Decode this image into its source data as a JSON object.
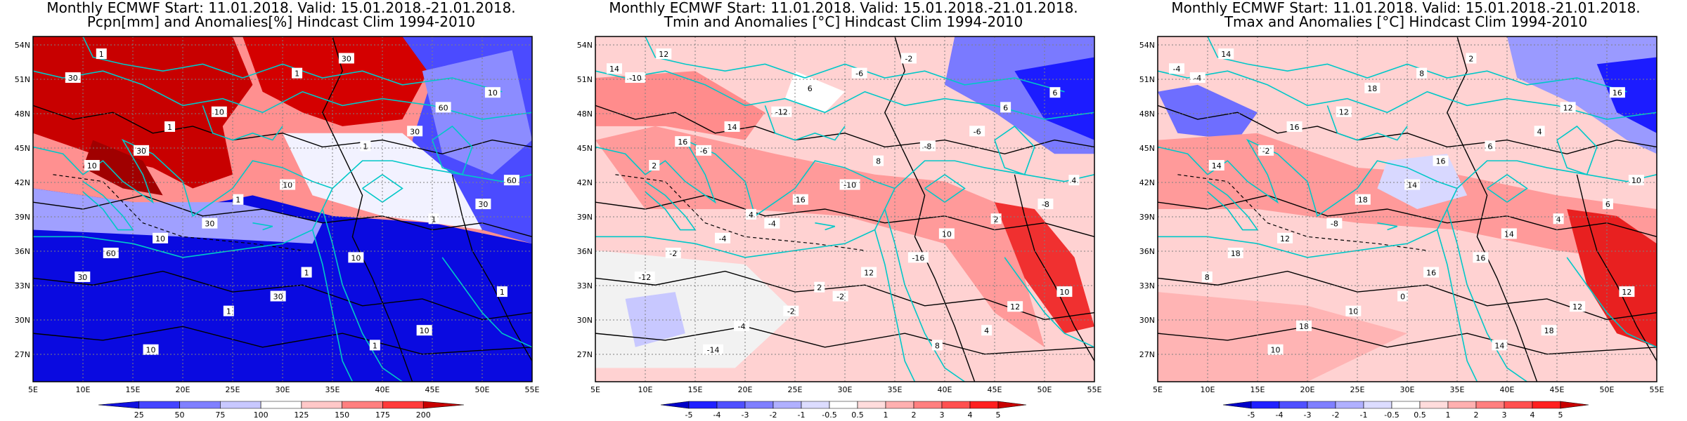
{
  "panels": [
    {
      "title_line1": "Monthly ECMWF Start: 11.01.2018. Valid: 15.01.2018.-21.01.2018.",
      "title_line2": "Pcpn[mm] and Anomalies[%] Hindcast Clim 1994-2010",
      "scale_values": [
        "25",
        "50",
        "75",
        "100",
        "125",
        "150",
        "175",
        "200"
      ],
      "scale_colors": [
        "#1010e0",
        "#4545ff",
        "#8080ff",
        "#c8c8ff",
        "#ffffff",
        "#ffc8c8",
        "#ff8080",
        "#ff3a3a",
        "#c80000"
      ],
      "contour_labels": [
        "30",
        "30",
        "30",
        "30",
        "30",
        "30",
        "30",
        "30",
        "10",
        "10",
        "10",
        "10",
        "10",
        "10",
        "10",
        "10",
        "1",
        "1",
        "1",
        "1",
        "1",
        "1",
        "1",
        "1",
        "1",
        "1",
        "60",
        "60",
        "60"
      ],
      "theme": "precip"
    },
    {
      "title_line1": "Monthly ECMWF Start: 11.01.2018. Valid: 15.01.2018.-21.01.2018.",
      "title_line2": "Tmin and Anomalies [°C] Hindcast Clim 1994-2010",
      "scale_values": [
        "-5",
        "-4",
        "-3",
        "-2",
        "-1",
        "-0.5",
        "0.5",
        "1",
        "2",
        "3",
        "4",
        "5"
      ],
      "scale_colors": [
        "#0000c8",
        "#2020ff",
        "#5050ff",
        "#8080ff",
        "#b0b0ff",
        "#dcdcff",
        "#ffffff",
        "#ffdcdc",
        "#ffb0b0",
        "#ff8080",
        "#ff5050",
        "#ff2020",
        "#c80000"
      ],
      "contour_labels": [
        "-10",
        "-6",
        "-4",
        "-2",
        "-2",
        "-6",
        "-8",
        "-12",
        "-14",
        "-12",
        "-10",
        "-16",
        "4",
        "6",
        "2",
        "-4",
        "-2",
        "-6",
        "-8",
        "2",
        "10",
        "12",
        "14",
        "16",
        "12",
        "8",
        "6",
        "4",
        "-2",
        "-4",
        "6",
        "8",
        "10",
        "12",
        "14",
        "16",
        "4",
        "2"
      ],
      "theme": "tmin"
    },
    {
      "title_line1": "Monthly ECMWF Start: 11.01.2018. Valid: 15.01.2018.-21.01.2018.",
      "title_line2": "Tmax and Anomalies [°C] Hindcast Clim 1994-2010",
      "scale_values": [
        "-5",
        "-4",
        "-3",
        "-2",
        "-1",
        "-0.5",
        "0.5",
        "1",
        "2",
        "3",
        "4",
        "5"
      ],
      "scale_colors": [
        "#0000c8",
        "#2020ff",
        "#5050ff",
        "#8080ff",
        "#b0b0ff",
        "#dcdcff",
        "#ffffff",
        "#ffdcdc",
        "#ffb0b0",
        "#ff8080",
        "#ff5050",
        "#ff2020",
        "#c80000"
      ],
      "contour_labels": [
        "-4",
        "-2",
        "-8",
        "0",
        "2",
        "4",
        "6",
        "8",
        "10",
        "12",
        "14",
        "16",
        "18",
        "16",
        "14",
        "12",
        "10",
        "8",
        "6",
        "4",
        "12",
        "14",
        "16",
        "18",
        "16",
        "14",
        "12",
        "10",
        "18",
        "18",
        "18",
        "16",
        "14",
        "12",
        "-4"
      ],
      "theme": "tmax"
    }
  ],
  "axes": {
    "lat_labels": [
      "54N",
      "51N",
      "48N",
      "45N",
      "42N",
      "39N",
      "36N",
      "33N",
      "30N",
      "27N"
    ],
    "lon_labels": [
      "5E",
      "10E",
      "15E",
      "20E",
      "25E",
      "30E",
      "35E",
      "40E",
      "45E",
      "50E",
      "55E"
    ]
  }
}
